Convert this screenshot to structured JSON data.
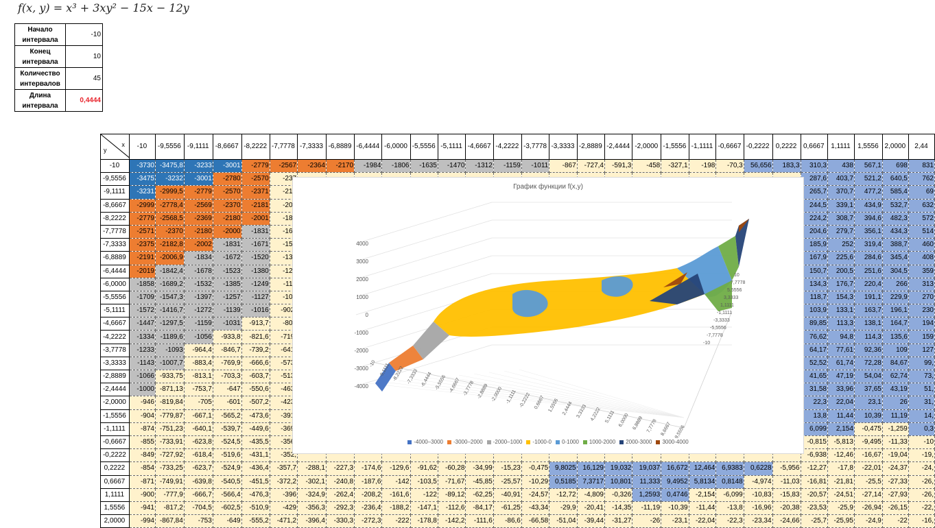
{
  "formula": "f(x, y) = x³ + 3xy² − 15x − 12y",
  "params": [
    {
      "label": "Начало интервала",
      "value": "-10"
    },
    {
      "label": "Конец интервала",
      "value": "10"
    },
    {
      "label": "Количество интервалов",
      "value": "45"
    },
    {
      "label": "Длина интервала",
      "value": "0,4444"
    }
  ],
  "table": {
    "corner_x": "x",
    "corner_y": "y",
    "x_headers": [
      "-10",
      "-9,5556",
      "-9,1111",
      "-8,6667",
      "-8,2222",
      "-7,7778",
      "-7,3333",
      "-6,8889",
      "-6,4444",
      "-6,0000",
      "-5,5556",
      "-5,1111",
      "-4,6667",
      "-4,2222",
      "-3,7778",
      "-3,3333",
      "-2,8889",
      "-2,4444",
      "-2,0000",
      "-1,5556",
      "-1,1111",
      "-0,6667",
      "-0,2222",
      "0,2222",
      "0,6667",
      "1,1111",
      "1,5556",
      "2,0000",
      "2,44"
    ],
    "rows": [
      {
        "y": "-10",
        "v": [
          "-3730",
          "-3475,8",
          "-3233",
          "-3001",
          "-2779",
          "-2567",
          "-2364",
          "-2170",
          "-1984",
          "-1806",
          "-1635",
          "-1470",
          "-1312",
          "-1159",
          "-1011",
          "-867",
          "-727,4",
          "-591,3",
          "-458",
          "-327,1",
          "-198",
          "-70,3",
          "56,656",
          "183,3",
          "310,3",
          "438",
          "567,1",
          "698",
          "831"
        ]
      },
      {
        "y": "-9,5556",
        "v": [
          "-3475",
          "-3232",
          "-3001",
          "-2780",
          "-2570",
          "-237",
          "",
          "",
          "",
          "",
          "",
          "",
          "",
          "",
          "",
          "",
          "",
          "",
          "",
          "",
          "",
          "",
          "",
          "",
          "287,6",
          "403,7",
          "521,2",
          "640,5",
          "762"
        ]
      },
      {
        "y": "-9,1111",
        "v": [
          "-3231",
          "-2999,5",
          "-2779",
          "-2570",
          "-2371",
          "-218",
          "",
          "",
          "",
          "",
          "",
          "",
          "",
          "",
          "",
          "",
          "",
          "",
          "",
          "",
          "",
          "",
          "",
          "",
          "265,7",
          "370,7",
          "477,2",
          "585,4",
          "69"
        ]
      },
      {
        "y": "-8,6667",
        "v": [
          "-2999",
          "-2778,4",
          "-2569",
          "-2370",
          "-2181",
          "-200",
          "",
          "",
          "",
          "",
          "",
          "",
          "",
          "",
          "",
          "",
          "",
          "",
          "",
          "",
          "",
          "",
          "",
          "",
          "244,5",
          "339,1",
          "434,9",
          "532,7",
          "632"
        ]
      },
      {
        "y": "-8,2222",
        "v": [
          "-2779",
          "-2568,5",
          "-2369",
          "-2180",
          "-2001",
          "-183",
          "",
          "",
          "",
          "",
          "",
          "",
          "",
          "",
          "",
          "",
          "",
          "",
          "",
          "",
          "",
          "",
          "",
          "",
          "224,2",
          "308,7",
          "394,6",
          "482,3",
          "572"
        ]
      },
      {
        "y": "-7,7778",
        "v": [
          "-2571",
          "-2370",
          "-2180",
          "-2000",
          "-1831",
          "-167",
          "",
          "",
          "",
          "",
          "",
          "",
          "",
          "",
          "",
          "",
          "",
          "",
          "",
          "",
          "",
          "",
          "",
          "",
          "204,6",
          "279,7",
          "356,1",
          "434,3",
          "514"
        ]
      },
      {
        "y": "-7,3333",
        "v": [
          "-2375",
          "-2182,8",
          "-2002",
          "-1831",
          "-1671",
          "-152",
          "",
          "",
          "",
          "",
          "",
          "",
          "",
          "",
          "",
          "",
          "",
          "",
          "",
          "",
          "",
          "",
          "",
          "",
          "185,9",
          "252",
          "319,4",
          "388,7",
          "460"
        ]
      },
      {
        "y": "-6,8889",
        "v": [
          "-2191",
          "-2006,9",
          "-1834",
          "-1672",
          "-1520",
          "-137",
          "",
          "",
          "",
          "",
          "",
          "",
          "",
          "",
          "",
          "",
          "",
          "",
          "",
          "",
          "",
          "",
          "",
          "",
          "167,9",
          "225,6",
          "284,6",
          "345,4",
          "408"
        ]
      },
      {
        "y": "-6,4444",
        "v": [
          "-2019",
          "-1842,4",
          "-1678",
          "-1523",
          "-1380",
          "-124",
          "",
          "",
          "",
          "",
          "",
          "",
          "",
          "",
          "",
          "",
          "",
          "",
          "",
          "",
          "",
          "",
          "",
          "",
          "150,7",
          "200,5",
          "251,6",
          "304,5",
          "359"
        ]
      },
      {
        "y": "-6,0000",
        "v": [
          "-1858",
          "-1689,2",
          "-1532",
          "-1385",
          "-1249",
          "-112",
          "",
          "",
          "",
          "",
          "",
          "",
          "",
          "",
          "",
          "",
          "",
          "",
          "",
          "",
          "",
          "",
          "",
          "",
          "134,3",
          "176,7",
          "220,4",
          "266",
          "313"
        ]
      },
      {
        "y": "-5,5556",
        "v": [
          "-1709",
          "-1547,3",
          "-1397",
          "-1257",
          "-1127",
          "-100",
          "",
          "",
          "",
          "",
          "",
          "",
          "",
          "",
          "",
          "",
          "",
          "",
          "",
          "",
          "",
          "",
          "",
          "",
          "118,7",
          "154,3",
          "191,1",
          "229,9",
          "270"
        ]
      },
      {
        "y": "-5,1111",
        "v": [
          "-1572",
          "-1416,7",
          "-1272",
          "-1139",
          "-1016",
          "-902,",
          "",
          "",
          "",
          "",
          "",
          "",
          "",
          "",
          "",
          "",
          "",
          "",
          "",
          "",
          "",
          "",
          "",
          "",
          "103,9",
          "133,1",
          "163,7",
          "196,1",
          "230"
        ]
      },
      {
        "y": "-4,6667",
        "v": [
          "-1447",
          "-1297,5",
          "-1159",
          "-1031",
          "-913,7",
          "-806",
          "",
          "",
          "",
          "",
          "",
          "",
          "",
          "",
          "",
          "",
          "",
          "",
          "",
          "",
          "",
          "",
          "",
          "",
          "89,85",
          "113,3",
          "138,1",
          "164,7",
          "194"
        ]
      },
      {
        "y": "-4,2222",
        "v": [
          "-1334",
          "-1189,6",
          "-1056",
          "-933,8",
          "-821,6",
          "-719,",
          "",
          "",
          "",
          "",
          "",
          "",
          "",
          "",
          "",
          "",
          "",
          "",
          "",
          "",
          "",
          "",
          "",
          "",
          "76,62",
          "94,8",
          "114,3",
          "135,6",
          "159"
        ]
      },
      {
        "y": "-3,7778",
        "v": [
          "-1233",
          "-1093",
          "-964,4",
          "-846,7",
          "-739,2",
          "-641,",
          "",
          "",
          "",
          "",
          "",
          "",
          "",
          "",
          "",
          "",
          "",
          "",
          "",
          "",
          "",
          "",
          "",
          "",
          "64,17",
          "77,61",
          "92,36",
          "109",
          "127"
        ]
      },
      {
        "y": "-3,3333",
        "v": [
          "-1143",
          "-1007,7",
          "-883,4",
          "-769,9",
          "-666,6",
          "-573,",
          "",
          "",
          "",
          "",
          "",
          "",
          "",
          "",
          "",
          "",
          "",
          "",
          "",
          "",
          "",
          "",
          "",
          "",
          "52,52",
          "61,74",
          "72,28",
          "84,67",
          "99,"
        ]
      },
      {
        "y": "-2,8889",
        "v": [
          "-1066",
          "-933,75",
          "-813,1",
          "-703,3",
          "-603,7",
          "-513,",
          "",
          "",
          "",
          "",
          "",
          "",
          "",
          "",
          "",
          "",
          "",
          "",
          "",
          "",
          "",
          "",
          "",
          "",
          "41,65",
          "47,19",
          "54,04",
          "62,74",
          "73,"
        ]
      },
      {
        "y": "-2,4444",
        "v": [
          "-1000",
          "-871,13",
          "-753,7",
          "-647",
          "-550,6",
          "-463,",
          "",
          "",
          "",
          "",
          "",
          "",
          "",
          "",
          "",
          "",
          "",
          "",
          "",
          "",
          "",
          "",
          "",
          "",
          "31,58",
          "33,96",
          "37,65",
          "43,19",
          "51,"
        ]
      },
      {
        "y": "-2,0000",
        "v": [
          "-946",
          "-819,84",
          "-705",
          "-601",
          "-507,2",
          "-423,",
          "",
          "",
          "",
          "",
          "",
          "",
          "",
          "",
          "",
          "",
          "",
          "",
          "",
          "",
          "",
          "",
          "",
          "",
          "22,3",
          "22,04",
          "23,1",
          "26",
          "31,"
        ]
      },
      {
        "y": "-1,5556",
        "v": [
          "-904",
          "-779,87",
          "-667,1",
          "-565,2",
          "-473,6",
          "-391,",
          "",
          "",
          "",
          "",
          "",
          "",
          "",
          "",
          "",
          "",
          "",
          "",
          "",
          "",
          "",
          "",
          "",
          "",
          "13,8",
          "11,44",
          "10,39",
          "11,19",
          "14,"
        ]
      },
      {
        "y": "-1,1111",
        "v": [
          "-874",
          "-751,23",
          "-640,1",
          "-539,7",
          "-449,6",
          "-369,",
          "",
          "",
          "",
          "",
          "",
          "",
          "",
          "",
          "",
          "",
          "",
          "",
          "",
          "",
          "",
          "",
          "",
          "",
          "6,099",
          "2,154",
          "-0,475",
          "-1,259",
          "0,3"
        ]
      },
      {
        "y": "-0,6667",
        "v": [
          "-855",
          "-733,91",
          "-623,8",
          "-524,5",
          "-435,5",
          "-356,",
          "",
          "",
          "",
          "",
          "",
          "",
          "",
          "",
          "",
          "",
          "",
          "",
          "",
          "",
          "",
          "",
          "",
          "",
          "-0,815",
          "-5,813",
          "-9,495",
          "-11,33",
          "-10"
        ]
      },
      {
        "y": "-0,2222",
        "v": [
          "-849",
          "-727,92",
          "-618,4",
          "-519,6",
          "-431,1",
          "-352,",
          "",
          "",
          "",
          "",
          "",
          "",
          "",
          "",
          "",
          "",
          "",
          "",
          "",
          "",
          "",
          "",
          "",
          "",
          "-6,938",
          "-12,46",
          "-16,67",
          "-19,04",
          "-19,"
        ]
      },
      {
        "y": "0,2222",
        "v": [
          "-854",
          "-733,25",
          "-623,7",
          "-524,9",
          "-436,4",
          "-357,7",
          "-288,1",
          "-227,3",
          "-174,6",
          "-129,6",
          "-91,62",
          "-60,28",
          "-34,99",
          "-15,23",
          "-0,475",
          "9,8025",
          "16,129",
          "19,032",
          "19,037",
          "16,672",
          "12,464",
          "6,9383",
          "0,6228",
          "-5,956",
          "-12,27",
          "-17,8",
          "-22,01",
          "-24,37",
          "-24,"
        ]
      },
      {
        "y": "0,6667",
        "v": [
          "-871",
          "-749,91",
          "-639,8",
          "-540,5",
          "-451,5",
          "-372,2",
          "-302,1",
          "-240,8",
          "-187,6",
          "-142",
          "-103,5",
          "-71,67",
          "-45,85",
          "-25,57",
          "-10,29",
          "0,5185",
          "7,3717",
          "10,801",
          "11,333",
          "9,4952",
          "5,8134",
          "0,8148",
          "-4,974",
          "-11,03",
          "-16,81",
          "-21,81",
          "-25,5",
          "-27,33",
          "-26,"
        ]
      },
      {
        "y": "1,1111",
        "v": [
          "-900",
          "-777,9",
          "-666,7",
          "-566,4",
          "-476,3",
          "-396",
          "-324,9",
          "-262,4",
          "-208,2",
          "-161,6",
          "-122",
          "-89,12",
          "-62,25",
          "-40,91",
          "-24,57",
          "-12,72",
          "-4,809",
          "-0,326",
          "1,2593",
          "0,4746",
          "-2,154",
          "-6,099",
          "-10,83",
          "-15,83",
          "-20,57",
          "-24,51",
          "-27,14",
          "-27,93",
          "-26,"
        ]
      },
      {
        "y": "1,5556",
        "v": [
          "-941",
          "-817,2",
          "-704,5",
          "-602,5",
          "-510,9",
          "-429",
          "-356,3",
          "-292,3",
          "-236,4",
          "-188,2",
          "-147,1",
          "-112,6",
          "-84,17",
          "-61,25",
          "-43,34",
          "-29,9",
          "-20,41",
          "-14,35",
          "-11,19",
          "-10,39",
          "-11,44",
          "-13,8",
          "-16,96",
          "-20,38",
          "-23,53",
          "-25,9",
          "-26,94",
          "-26,15",
          "-22,"
        ]
      },
      {
        "y": "2,0000",
        "v": [
          "-994",
          "-867,84",
          "-753",
          "-649",
          "-555,2",
          "-471,2",
          "-396,4",
          "-330,3",
          "-272,3",
          "-222",
          "-178,8",
          "-142,2",
          "-111,6",
          "-86,6",
          "-66,58",
          "-51,04",
          "-39,44",
          "-31,27",
          "-26",
          "-23,1",
          "-22,04",
          "-22,3",
          "-23,34",
          "-24,66",
          "-25,7",
          "-25,95",
          "-24,9",
          "-22",
          "-16,"
        ]
      }
    ]
  },
  "chart_data": {
    "type": "surface",
    "title": "График функции f(x,y)",
    "z_ticks": [
      "4000",
      "3000",
      "2000",
      "1000",
      "0",
      "-1000",
      "-2000",
      "-3000",
      "-4000"
    ],
    "x_ticks": [
      "-10",
      "-9,1111",
      "-8,2222",
      "-7,3333",
      "-6,4444",
      "-5,5556",
      "-4,6667",
      "-3,7778",
      "-2,8889",
      "-2,0000",
      "-1,1111",
      "-0,2222",
      "0,6667",
      "1,5556",
      "2,4444",
      "3,3333",
      "4,2222",
      "5,1111",
      "6,0000",
      "6,8889",
      "7,7778",
      "8,6667",
      "9,5556"
    ],
    "y_ticks": [
      "10",
      "7,7778",
      "5,5556",
      "3,3333",
      "1,1111",
      "-1,1111",
      "-3,3333",
      "-5,5556",
      "-7,7778",
      "-10"
    ],
    "legend": [
      {
        "label": "-4000–3000",
        "color": "#4472c4"
      },
      {
        "label": "-3000–2000",
        "color": "#ed7d31"
      },
      {
        "label": "-2000–1000",
        "color": "#a5a5a5"
      },
      {
        "label": "-1000-0",
        "color": "#ffc000"
      },
      {
        "label": "0-1000",
        "color": "#5b9bd5"
      },
      {
        "label": "1000-2000",
        "color": "#70ad47"
      },
      {
        "label": "2000-3000",
        "color": "#264478"
      },
      {
        "label": "3000-4000",
        "color": "#9e480e"
      }
    ]
  }
}
